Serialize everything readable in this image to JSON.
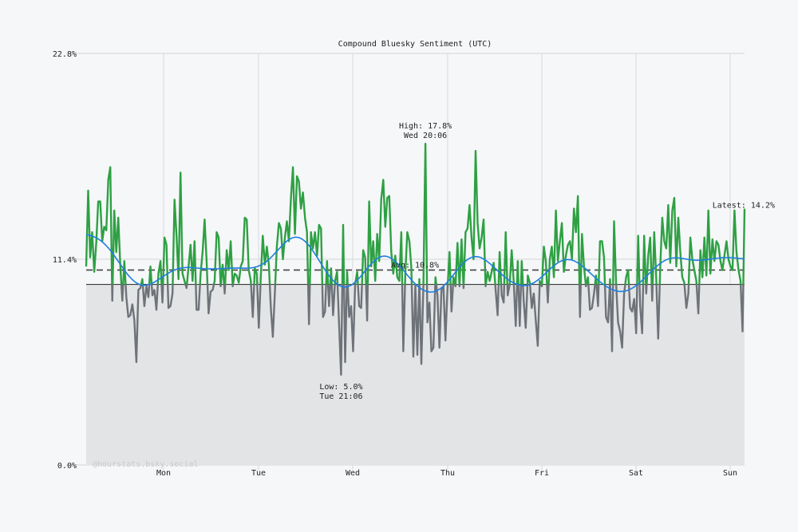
{
  "chart_data": {
    "type": "line",
    "title": "Compound Bluesky Sentiment (UTC)",
    "ylim": [
      0,
      22.8
    ],
    "y_ticks": [
      "0.0%",
      "11.4%",
      "22.8%"
    ],
    "x_ticks": [
      "Mon",
      "Tue",
      "Wed",
      "Thu",
      "Fri",
      "Sat",
      "Sun"
    ],
    "grid": true,
    "threshold": 10.0,
    "colors": {
      "above": "#2ea043",
      "below": "#6e7379",
      "trend": "#1e7fe0",
      "background": "#f6f7f9",
      "below_fill": "#e3e4e6"
    },
    "annotations": {
      "high": {
        "label": "High: 17.8%",
        "time": "Wed 20:06"
      },
      "low": {
        "label": "Low: 5.0%",
        "time": "Tue 21:06"
      },
      "avg": {
        "label": "Avg: 10.8%",
        "value": 10.8
      },
      "latest": {
        "label": "Latest: 14.2%"
      }
    },
    "watermark": "@hourstats.bsky.social",
    "series": [
      {
        "values": [
          11.0,
          15.2,
          11.5,
          12.9,
          10.7,
          12.3,
          14.6,
          14.6,
          12.4,
          13.2,
          13.0,
          15.8,
          16.5,
          9.1,
          14.1,
          11.8,
          13.7,
          11.0,
          9.1,
          11.3,
          9.3,
          8.2,
          8.3,
          8.9,
          8.0,
          5.7,
          9.7,
          9.8,
          10.3,
          8.8,
          9.9,
          9.3,
          11.0,
          9.4,
          9.7,
          8.6,
          10.6,
          11.3,
          9.0,
          12.6,
          12.2,
          8.7,
          8.8,
          9.5,
          14.7,
          12.7,
          10.3,
          16.2,
          10.6,
          10.2,
          9.8,
          11.0,
          12.2,
          10.2,
          12.4,
          8.6,
          8.6,
          10.6,
          11.8,
          13.6,
          11.3,
          8.4,
          9.6,
          9.7,
          10.2,
          12.9,
          12.6,
          9.9,
          11.1,
          9.5,
          11.9,
          10.8,
          12.4,
          9.9,
          10.6,
          10.5,
          10.1,
          11.0,
          11.3,
          13.7,
          13.6,
          10.8,
          10.2,
          8.2,
          10.9,
          10.6,
          7.6,
          10.4,
          12.7,
          11.1,
          12.1,
          11.1,
          8.7,
          7.1,
          9.5,
          12.1,
          13.4,
          13.1,
          11.4,
          12.6,
          13.5,
          12.4,
          14.8,
          16.5,
          12.8,
          16.0,
          15.7,
          14.2,
          15.1,
          13.7,
          12.9,
          7.8,
          12.9,
          12.0,
          12.9,
          11.6,
          13.3,
          13.1,
          8.2,
          8.5,
          11.3,
          8.8,
          10.9,
          8.3,
          10.2,
          10.7,
          7.8,
          5.0,
          13.3,
          5.7,
          10.7,
          8.2,
          8.8,
          6.3,
          10.0,
          10.7,
          8.8,
          8.7,
          11.9,
          11.5,
          8.0,
          14.6,
          11.0,
          12.4,
          10.2,
          12.8,
          11.3,
          14.7,
          15.8,
          13.2,
          14.8,
          14.9,
          11.8,
          10.6,
          11.6,
          10.4,
          10.2,
          12.9,
          6.3,
          10.6,
          12.9,
          12.4,
          10.9,
          6.0,
          10.0,
          6.1,
          10.3,
          5.6,
          10.0,
          17.8,
          7.9,
          9.0,
          6.3,
          6.5,
          10.4,
          9.4,
          6.5,
          9.7,
          9.9,
          6.9,
          9.7,
          11.8,
          8.5,
          10.4,
          9.9,
          12.3,
          9.9,
          12.5,
          9.8,
          12.9,
          13.1,
          14.4,
          12.6,
          11.4,
          17.4,
          13.4,
          12.0,
          12.6,
          13.6,
          9.9,
          10.7,
          10.2,
          10.7,
          11.2,
          9.7,
          8.3,
          11.8,
          9.4,
          9.0,
          12.9,
          9.4,
          10.0,
          11.9,
          10.2,
          7.7,
          11.3,
          7.7,
          11.3,
          9.1,
          7.6,
          10.5,
          10.1,
          8.7,
          9.5,
          8.0,
          6.6,
          10.2,
          9.9,
          12.1,
          11.3,
          9.0,
          11.4,
          12.1,
          10.4,
          14.1,
          11.3,
          12.4,
          13.4,
          10.7,
          11.6,
          12.2,
          12.4,
          11.4,
          14.2,
          12.9,
          14.9,
          8.2,
          12.8,
          11.0,
          9.9,
          10.4,
          8.6,
          8.7,
          9.5,
          10.5,
          8.8,
          12.4,
          12.4,
          11.5,
          8.2,
          7.9,
          10.3,
          6.3,
          13.5,
          10.1,
          7.9,
          7.4,
          6.5,
          9.5,
          10.4,
          10.8,
          8.7,
          8.5,
          9.2,
          7.3,
          12.7,
          8.8,
          7.3,
          12.7,
          9.5,
          11.6,
          12.6,
          9.1,
          12.9,
          10.4,
          7.0,
          11.0,
          13.7,
          12.4,
          12.0,
          14.4,
          11.2,
          14.1,
          14.8,
          11.0,
          13.7,
          11.8,
          10.4,
          10.1,
          8.7,
          9.5,
          12.6,
          11.4,
          10.8,
          10.2,
          8.4,
          11.9,
          10.4,
          12.6,
          10.5,
          14.1,
          10.6,
          12.5,
          11.3,
          12.4,
          12.2,
          11.3,
          10.8,
          11.6,
          12.4,
          11.4,
          11.0,
          10.8,
          14.1,
          11.8,
          10.8,
          10.2,
          7.4,
          14.2
        ]
      }
    ]
  }
}
